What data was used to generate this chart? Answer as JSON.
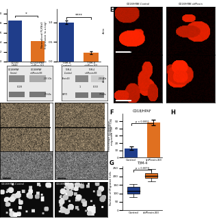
{
  "panel_A": {
    "values": [
      0.85,
      0.42
    ],
    "bar_colors": [
      "#1f3d8a",
      "#e07020"
    ],
    "ylim": [
      0,
      1.1
    ],
    "xtick_labels": [
      "CD18/HPAF\nControl",
      "CD18/HPAF\n-shPlexin-B3"
    ],
    "significance": "*"
  },
  "panel_B": {
    "values": [
      1.0,
      0.22
    ],
    "bar_colors": [
      "#1f3d8a",
      "#e07020"
    ],
    "ylabel": "Normalised PLXNb3\nExpression (a.u.Log)",
    "ylim": [
      0.0,
      1.35
    ],
    "yticks": [
      0.0,
      0.5,
      1.0
    ],
    "xtick_labels": [
      "T3M-4\n-Control",
      "T3M-4\n-shPlexin-B3"
    ],
    "significance": "****"
  },
  "panel_F": {
    "title": "CD18/HPAF",
    "categories": [
      "Control",
      "shPlexin-B3"
    ],
    "values": [
      13,
      48
    ],
    "errors": [
      2,
      4
    ],
    "bar_colors": [
      "#1f3d8a",
      "#e07020"
    ],
    "ylabel": "Percentage of distance\nmigration (%)",
    "ylim": [
      0,
      60
    ],
    "yticks": [
      0,
      10,
      20,
      30,
      40,
      50
    ],
    "pvalue": "p < 0.0001"
  },
  "panel_G": {
    "title": "T3M-4",
    "categories": [
      "Control",
      "shPlexin-B3"
    ],
    "control_box": {
      "min": 80,
      "q1": 100,
      "median": 115,
      "q3": 140,
      "max": 155
    },
    "sh_box": {
      "min": 170,
      "q1": 190,
      "median": 205,
      "q3": 220,
      "max": 245
    },
    "box_colors": [
      "#1f3d8a",
      "#e07020"
    ],
    "ylabel": "Number of Migrated Cells",
    "ylim": [
      0,
      260
    ],
    "yticks": [
      0,
      50,
      100,
      150,
      200,
      250
    ],
    "pvalue": "p = 0.0079"
  },
  "bg_color": "#ffffff"
}
